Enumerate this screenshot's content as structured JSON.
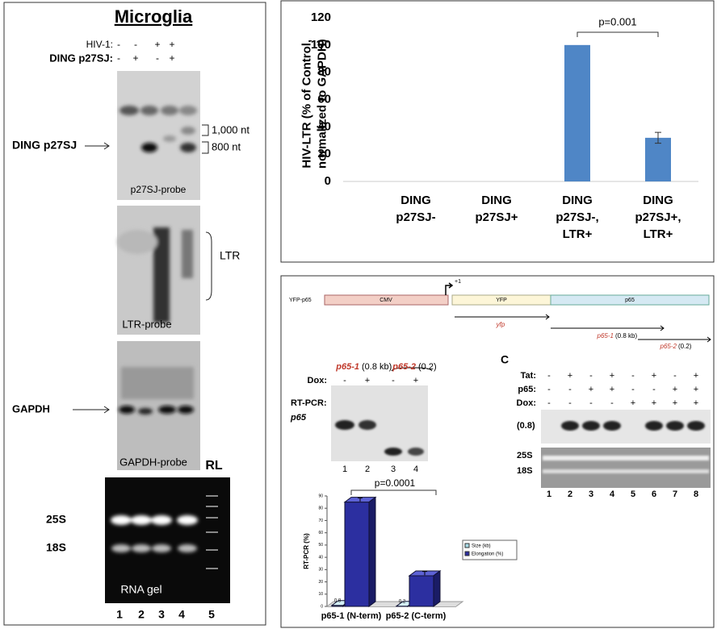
{
  "microglia": {
    "title": "Microglia",
    "hiv_label": "HIV-1:",
    "hiv_lanes": [
      "-",
      "-",
      "+",
      "+"
    ],
    "ding_label": "DING p27SJ:",
    "ding_lanes": [
      "-",
      "+",
      "-",
      "+"
    ],
    "band_label": "DING p27SJ",
    "size_markers": [
      "1,000 nt",
      "800 nt"
    ],
    "probe1": "p27SJ-probe",
    "ltr_label": "LTR",
    "probe2": "LTR-probe",
    "gapdh_label": "GAPDH",
    "probe3": "GAPDH-probe",
    "rl": "RL",
    "rrna": [
      "25S",
      "18S"
    ],
    "gel_label": "RNA gel",
    "lanes": [
      "1",
      "2",
      "3",
      "4",
      "5"
    ]
  },
  "chart_data": [
    {
      "type": "bar",
      "y_label": "HIV-LTR (% of Control, normalized to GAPDH)",
      "categories": [
        "DING p27SJ-",
        "DING p27SJ+",
        "DING p27SJ-, LTR+",
        "DING p27SJ+, LTR+"
      ],
      "values": [
        0,
        0,
        100,
        32
      ],
      "errors": [
        null,
        null,
        null,
        4
      ],
      "color": "#4f86c6",
      "ylim": [
        0,
        120
      ],
      "yticks": [
        0,
        20,
        40,
        60,
        80,
        100,
        120
      ],
      "annotation": "p=0.001"
    },
    {
      "type": "bar3d",
      "y_label": "RT-PCR (%)",
      "categories": [
        "p65-1 (N-term)",
        "p65-2 (C-term)"
      ],
      "series": [
        {
          "name": "Size (kb)",
          "color": "#a8dbe6",
          "values": [
            0.8,
            0.2
          ]
        },
        {
          "name": "Elongation (%)",
          "color": "#2c2fa0",
          "values": [
            85,
            25
          ],
          "errors": [
            1.5,
            1.5
          ]
        }
      ],
      "ylim": [
        0,
        90
      ],
      "yticks": [
        0,
        10,
        20,
        30,
        40,
        50,
        60,
        70,
        80,
        90
      ],
      "annotation": "p=0.0001"
    }
  ],
  "construct": {
    "name": "YFP-p65",
    "cmv": "CMV",
    "tss": "+1",
    "yfp_box": "YFP",
    "p65_box": "p65",
    "yfp": "yfp",
    "amplicons": [
      {
        "name": "p65-1",
        "size": "(0.8 kb)"
      },
      {
        "name": "p65-2",
        "size": "(0.2)"
      }
    ]
  },
  "gel_b": {
    "amplicons": [
      {
        "name": "p65-1",
        "size": "(0.8 kb)"
      },
      {
        "name": "p65-2",
        "size": "(0.2)"
      }
    ],
    "dox_label": "Dox:",
    "dox": [
      "-",
      "+",
      "-",
      "+"
    ],
    "method": "RT-PCR:",
    "gene": "p65",
    "lanes": [
      "1",
      "2",
      "3",
      "4"
    ]
  },
  "panel_c": {
    "label": "C",
    "rows": [
      {
        "name": "Tat:",
        "signs": [
          "-",
          "+",
          "-",
          "+",
          "-",
          "+",
          "-",
          "+"
        ]
      },
      {
        "name": "p65:",
        "signs": [
          "-",
          "-",
          "+",
          "+",
          "-",
          "-",
          "+",
          "+"
        ]
      },
      {
        "name": "Dox:",
        "signs": [
          "-",
          "-",
          "-",
          "-",
          "+",
          "+",
          "+",
          "+"
        ]
      }
    ],
    "band": "(0.8)",
    "rrna": [
      "25S",
      "18S"
    ],
    "lanes": [
      "1",
      "2",
      "3",
      "4",
      "5",
      "6",
      "7",
      "8"
    ]
  }
}
